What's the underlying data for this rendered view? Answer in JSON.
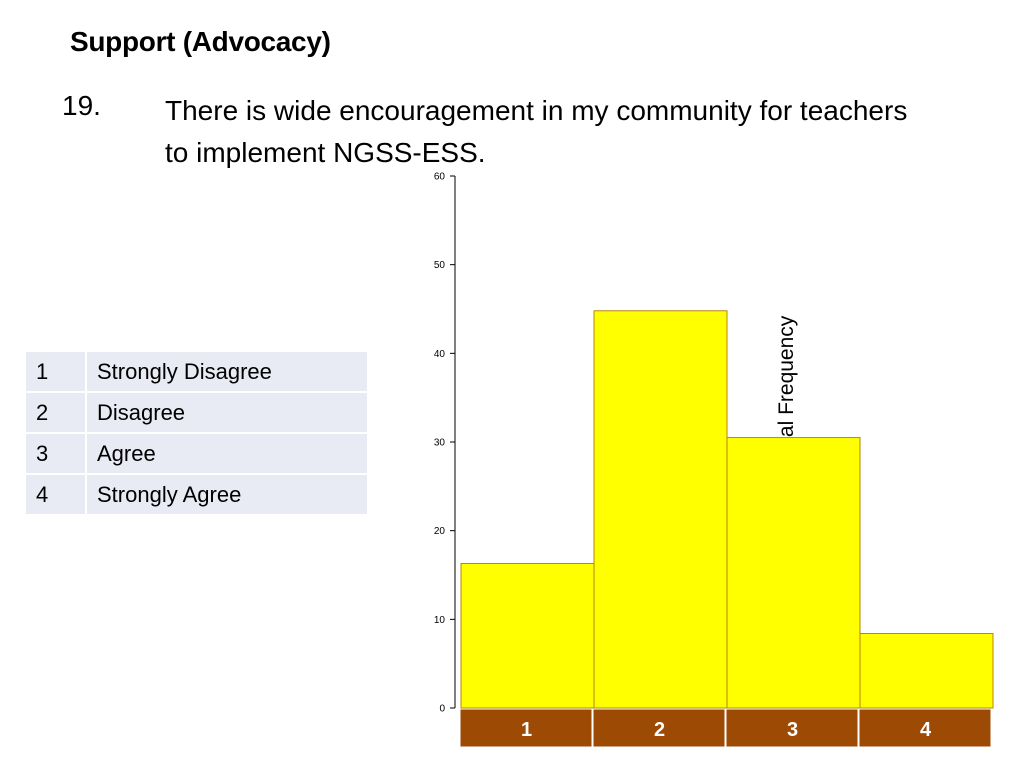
{
  "slide": {
    "heading": "Support (Advocacy)",
    "question_number": "19.",
    "question_text": "There is wide encouragement in my community for teachers to implement NGSS-ESS."
  },
  "legend": [
    {
      "code": "1",
      "label": "Strongly Disagree"
    },
    {
      "code": "2",
      "label": "Disagree"
    },
    {
      "code": "3",
      "label": "Agree"
    },
    {
      "code": "4",
      "label": "Strongly Agree"
    }
  ],
  "chart_data": {
    "type": "bar",
    "categories": [
      "1",
      "2",
      "3",
      "4"
    ],
    "values": [
      16.3,
      44.8,
      30.5,
      8.4
    ],
    "ylabel": "Percent of Total Frequency",
    "xlabel": "",
    "ylim": [
      0,
      60
    ],
    "yticks": [
      0,
      10,
      20,
      30,
      40,
      50,
      60
    ],
    "bar_color": "#ffff00",
    "bar_edge_color": "#b8860b",
    "category_band_color": "#9c4a04",
    "grid": false
  }
}
